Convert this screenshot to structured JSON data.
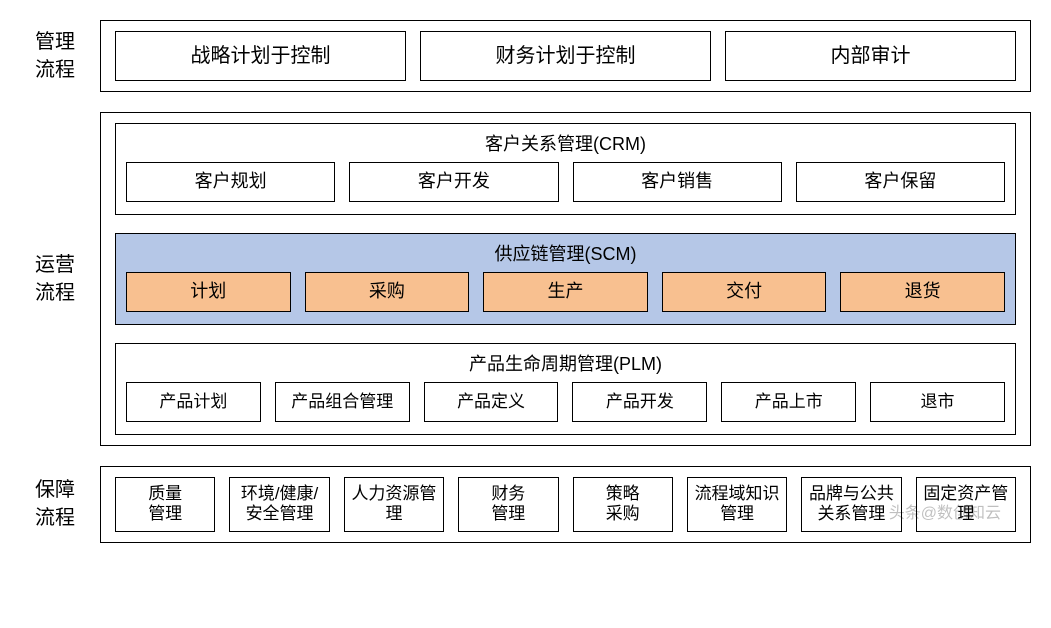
{
  "colors": {
    "page_bg": "#ffffff",
    "border": "#000000",
    "scm_bg": "#b5c7e7",
    "scm_box_bg": "#f8c090",
    "text": "#000000",
    "watermark": "rgba(0,0,0,0.25)"
  },
  "typography": {
    "row_label_fontsize": 20,
    "group_title_fontsize": 18,
    "box_fontsize": 18,
    "top_box_fontsize": 20,
    "small_box_fontsize": 17
  },
  "rows": {
    "mgmt": {
      "label": "管理\n流程",
      "boxes": [
        "战略计划于控制",
        "财务计划于控制",
        "内部审计"
      ]
    },
    "ops": {
      "label": "运营\n流程",
      "crm": {
        "title": "客户关系管理(CRM)",
        "boxes": [
          "客户规划",
          "客户开发",
          "客户销售",
          "客户保留"
        ]
      },
      "scm": {
        "title": "供应链管理(SCM)",
        "boxes": [
          "计划",
          "采购",
          "生产",
          "交付",
          "退货"
        ]
      },
      "plm": {
        "title": "产品生命周期管理(PLM)",
        "boxes": [
          "产品计划",
          "产品组合管理",
          "产品定义",
          "产品开发",
          "产品上市",
          "退市"
        ]
      }
    },
    "support": {
      "label": "保障\n流程",
      "boxes": [
        "质量\n管理",
        "环境/健康/安全管理",
        "人力资源管理",
        "财务\n管理",
        "策略\n采购",
        "流程域知识管理",
        "品牌与公共关系管理",
        "固定资产管理"
      ]
    }
  },
  "watermark": "头条@数创知云"
}
